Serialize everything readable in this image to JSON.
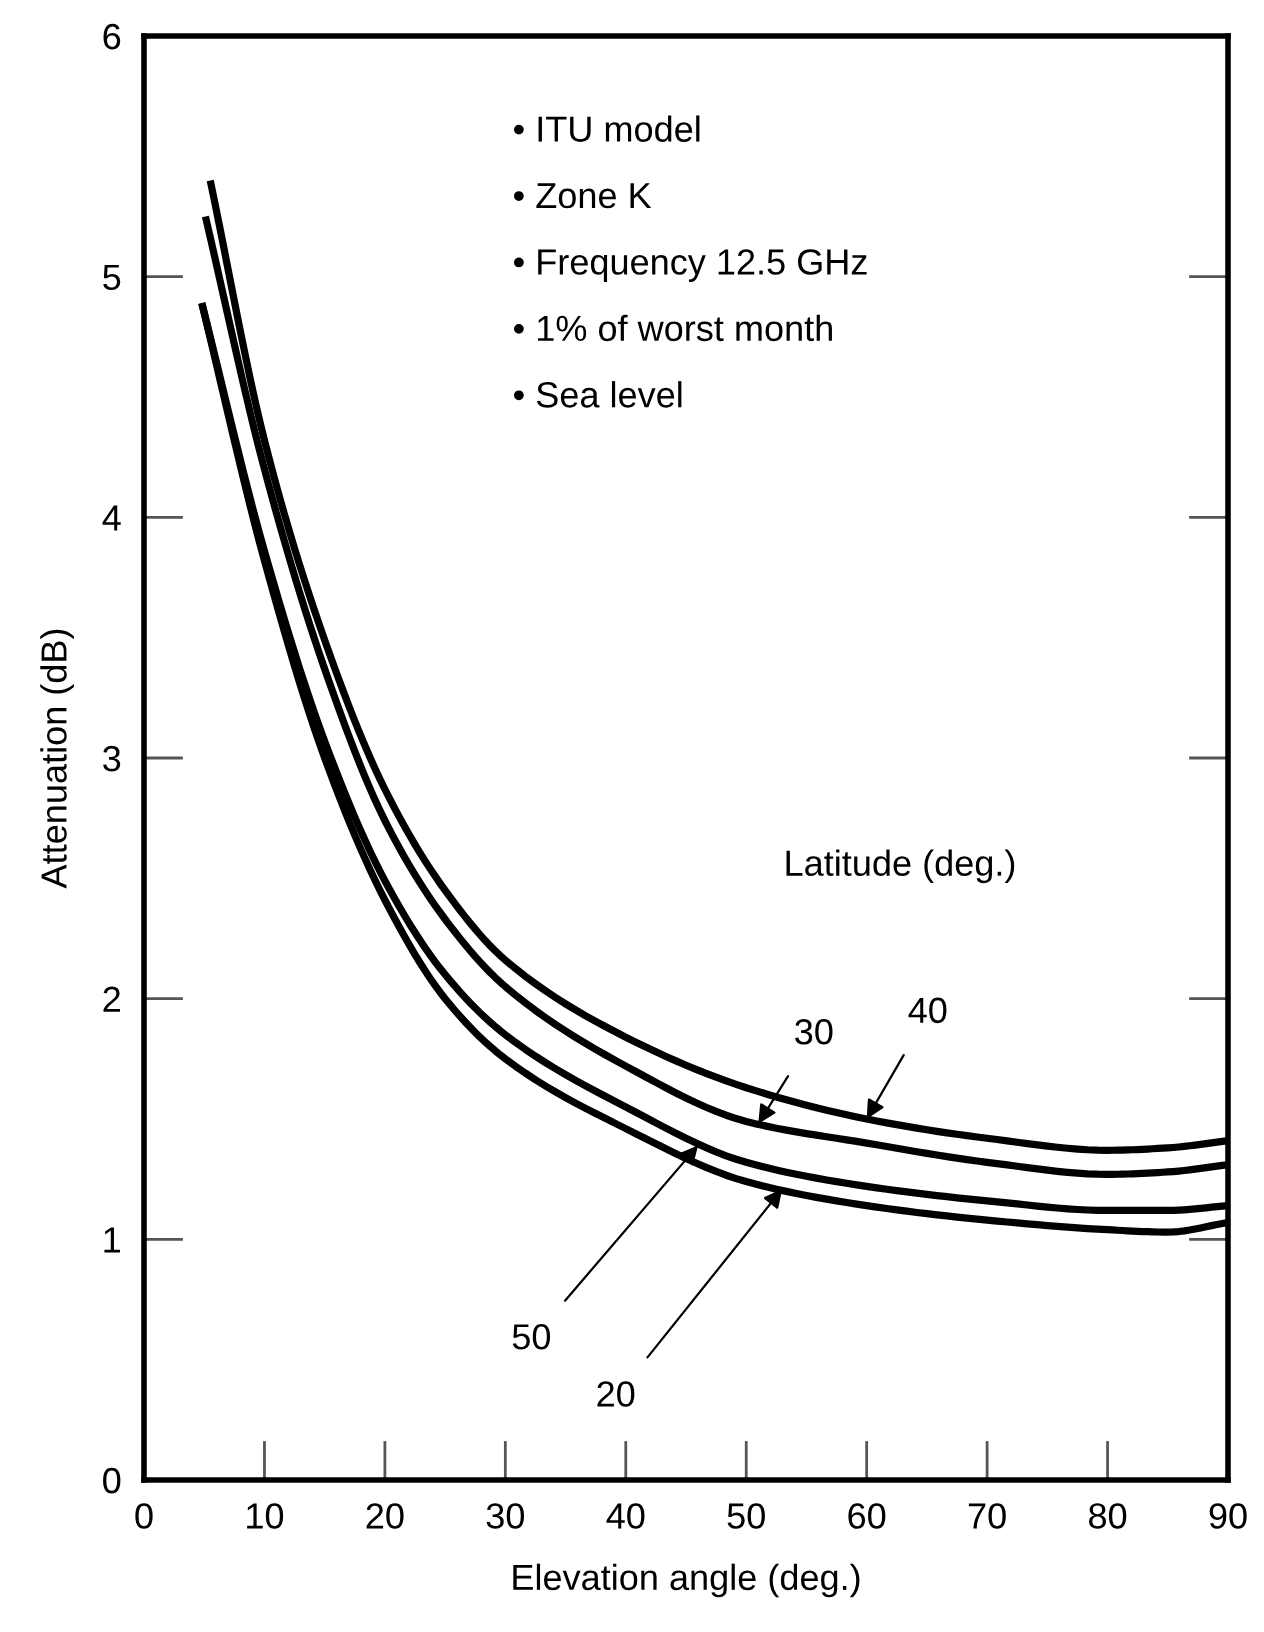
{
  "chart_data": {
    "type": "line",
    "xlabel": "Elevation angle (deg.)",
    "ylabel": "Attenuation (dB)",
    "xlim": [
      0,
      90
    ],
    "ylim": [
      0,
      6
    ],
    "xticks": [
      0,
      10,
      20,
      30,
      40,
      50,
      60,
      70,
      80,
      90
    ],
    "yticks": [
      0,
      1,
      2,
      3,
      4,
      5,
      6
    ],
    "grid": false,
    "marker": "none",
    "line_style": "solid",
    "series": [
      {
        "color": "#000000",
        "x": [
          5.5,
          10,
          15,
          20,
          25,
          30,
          40,
          50,
          60,
          70,
          80,
          85,
          90
        ],
        "values": [
          5.4,
          4.32,
          3.49,
          2.87,
          2.45,
          2.16,
          1.84,
          1.63,
          1.5,
          1.42,
          1.37,
          1.38,
          1.41
        ]
      },
      {
        "color": "#000000",
        "x": [
          5.1,
          10,
          15,
          20,
          25,
          30,
          40,
          50,
          60,
          70,
          80,
          85,
          90
        ],
        "values": [
          5.25,
          4.2,
          3.37,
          2.74,
          2.33,
          2.05,
          1.72,
          1.49,
          1.4,
          1.32,
          1.27,
          1.28,
          1.31
        ]
      },
      {
        "color": "#000000",
        "x": [
          4.8,
          10,
          15,
          20,
          25,
          30,
          40,
          50,
          60,
          70,
          80,
          85,
          90
        ],
        "values": [
          4.89,
          3.86,
          3.07,
          2.49,
          2.1,
          1.85,
          1.55,
          1.32,
          1.22,
          1.16,
          1.12,
          1.12,
          1.14
        ]
      },
      {
        "color": "#000000",
        "x": [
          4.8,
          10,
          15,
          20,
          25,
          30,
          40,
          50,
          60,
          70,
          80,
          85,
          90
        ],
        "values": [
          4.89,
          3.82,
          3.0,
          2.41,
          2.0,
          1.75,
          1.46,
          1.24,
          1.14,
          1.08,
          1.04,
          1.03,
          1.07
        ]
      }
    ],
    "annotations": [
      "• ITU model",
      "• Zone K",
      "• Frequency 12.5 GHz",
      "• 1% of worst month",
      "• Sea level",
      "Latitude (deg.)",
      {
        "text": "30",
        "x": 51,
        "y": 1.48
      },
      {
        "text": "40",
        "x": 60,
        "y": 1.5
      },
      {
        "text": "50",
        "x": 46,
        "y": 1.39
      },
      {
        "text": "20",
        "x": 53,
        "y": 1.21
      }
    ]
  }
}
